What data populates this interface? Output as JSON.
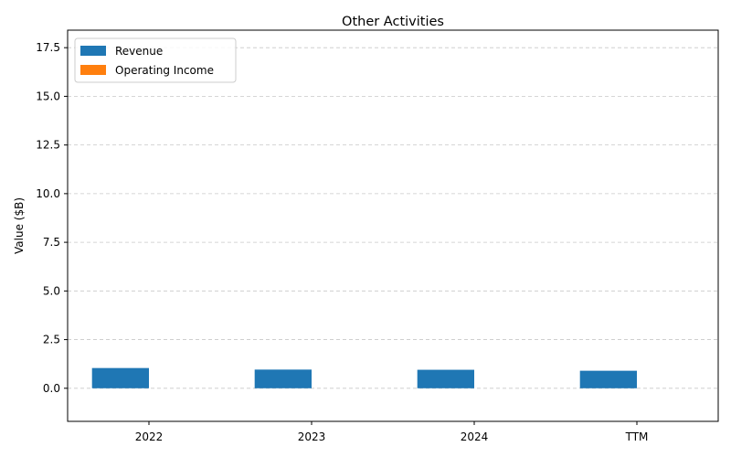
{
  "chart_data": {
    "type": "bar",
    "title": "Other Activities",
    "xlabel": "",
    "ylabel": "Value ($B)",
    "categories": [
      "2022",
      "2023",
      "2024",
      "TTM"
    ],
    "series": [
      {
        "name": "Revenue",
        "color": "#1f77b4",
        "values": [
          1.04,
          0.96,
          0.95,
          0.9
        ]
      },
      {
        "name": "Operating Income",
        "color": "#ff7f0e",
        "values": [
          0,
          0,
          0,
          0
        ]
      }
    ],
    "ylim": [
      -1.7,
      18.4
    ],
    "yticks": [
      "0.0",
      "2.5",
      "5.0",
      "7.5",
      "10.0",
      "12.5",
      "15.0",
      "17.5"
    ],
    "grid": "y-dashed",
    "legend": "top-left"
  }
}
